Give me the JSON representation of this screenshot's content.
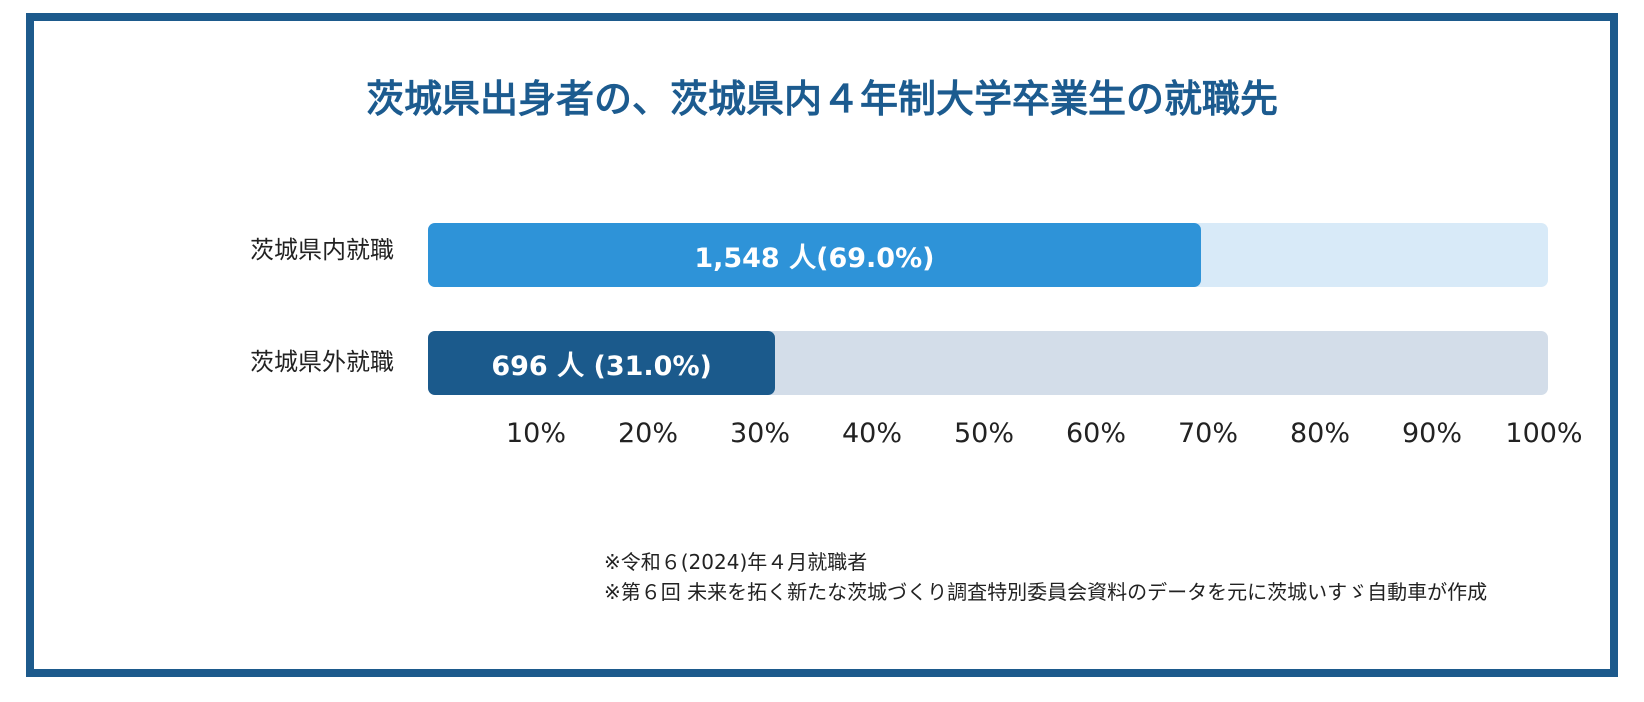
{
  "chart_data": {
    "type": "bar",
    "orientation": "horizontal",
    "stacked_percent": true,
    "title": "茨城県出身者の、茨城県内４年制大学卒業生の就職先",
    "categories": [
      "茨城県内就職",
      "茨城県外就職"
    ],
    "values_percent": [
      69.0,
      31.0
    ],
    "values_people": [
      1548,
      696
    ],
    "data_labels": [
      "1,548 人(69.0%)",
      "696 人 (31.0%)"
    ],
    "x_ticks": [
      "10%",
      "20%",
      "30%",
      "40%",
      "50%",
      "60%",
      "70%",
      "80%",
      "90%",
      "100%"
    ],
    "x_tick_values": [
      10,
      20,
      30,
      40,
      50,
      60,
      70,
      80,
      90,
      100
    ],
    "xlim": [
      0,
      100
    ],
    "colors": {
      "inside_fill": "#2e93d8",
      "inside_track": "#d8eaf8",
      "outside_fill": "#1b5a8c",
      "outside_track": "#d3dde9",
      "frame": "#1d5a8c",
      "title": "#1c5b8f"
    },
    "grid": false,
    "legend": "none"
  },
  "notes": [
    "※令和６(2024)年４月就職者",
    "※第６回 未来を拓く新たな茨城づくり調査特別委員会資料のデータを元に茨城いすゞ自動車が作成"
  ]
}
